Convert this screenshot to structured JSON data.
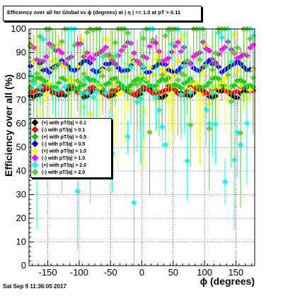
{
  "title": "Efficiency over all for Global vs ϕ (degrees) at | η | <= 1.0 at pT > 0.11",
  "footer": "Sat Sep  9 11:36:05 2017",
  "chart_data": {
    "type": "scatter",
    "title": "Efficiency over all for Global vs ϕ (degrees) at | η | <= 1.0 at pT > 0.11",
    "xlabel": "ϕ (degrees)",
    "ylabel": "Efficiency over all (%)",
    "xlim": [
      -180,
      180
    ],
    "ylim": [
      0,
      100
    ],
    "xticks": [
      -150,
      -100,
      -50,
      0,
      50,
      100,
      150
    ],
    "yticks": [
      0,
      10,
      20,
      30,
      40,
      50,
      60,
      70,
      80,
      90,
      100
    ],
    "grid": true,
    "legend_position": "left-middle",
    "series": [
      {
        "name": "(+) with pT/|q| > 0.1",
        "color": "#000000",
        "base": 73,
        "amp": 1.5,
        "spread": 1.5
      },
      {
        "name": "(-) with pT/|q| > 0.1",
        "color": "#ff0000",
        "base": 74,
        "amp": 1.5,
        "spread": 1.5
      },
      {
        "name": "(+) with pT/|q| > 0.5",
        "color": "#00cc00",
        "base": 77,
        "amp": 2,
        "spread": 2
      },
      {
        "name": "(-) with pT/|q| > 0.5",
        "color": "#0000ff",
        "base": 84,
        "amp": 2,
        "spread": 2
      },
      {
        "name": "(+) with pT/|q| > 1.0",
        "color": "#ffff00",
        "base": 83,
        "amp": 10,
        "spread": 12
      },
      {
        "name": "(-) with pT/|q| > 1.0",
        "color": "#ff00ff",
        "base": 90,
        "amp": 3,
        "spread": 4
      },
      {
        "name": "(+) with pT/|q| > 2.0",
        "color": "#00ffff",
        "base": 88,
        "amp": 30,
        "spread": 40
      },
      {
        "name": "(-) with pT/|q| > 2.0",
        "color": "#66cc33",
        "base": 95,
        "amp": 15,
        "spread": 25
      }
    ]
  }
}
